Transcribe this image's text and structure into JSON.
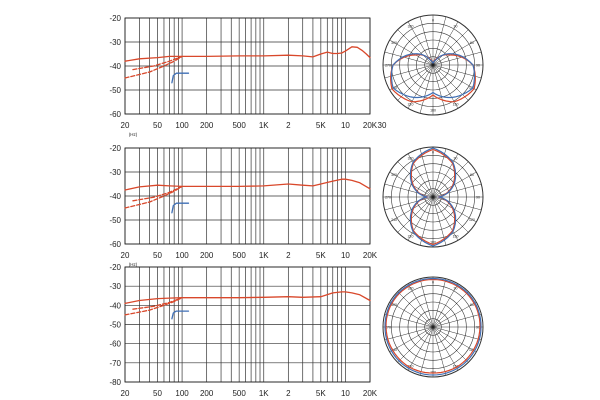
{
  "chart_data": [
    {
      "type": "line",
      "title": "",
      "x_scale": "log",
      "xlim": [
        20,
        20000
      ],
      "ylim": [
        -60,
        -20
      ],
      "y_ticks": [
        "-20",
        "-30",
        "-40",
        "-50",
        "-60"
      ],
      "x_ticks": [
        "20",
        "50",
        "100",
        "200",
        "500",
        "1K",
        "2",
        "5K",
        "10",
        "20K",
        "30"
      ],
      "x_unit": "(Hz)",
      "grid": true,
      "series": [
        {
          "color": "#d9482b",
          "style": "solid",
          "x": [
            20,
            30,
            50,
            70,
            100,
            200,
            500,
            1000,
            2000,
            3000,
            4000,
            5000,
            6000,
            7000,
            8000,
            9000,
            10000,
            12000,
            14000,
            16000,
            18000,
            20000
          ],
          "y": [
            -38,
            -37,
            -36.5,
            -36,
            -36,
            -36,
            -35.8,
            -35.8,
            -35.5,
            -35.8,
            -36.2,
            -35,
            -34.2,
            -34.8,
            -34.8,
            -34.6,
            -33.8,
            -32,
            -32.2,
            -33.5,
            -35,
            -36.5
          ]
        },
        {
          "color": "#d9482b",
          "style": "dashed",
          "x": [
            20,
            40,
            60,
            80,
            100
          ],
          "y": [
            -45,
            -42.5,
            -40,
            -38,
            -36
          ]
        },
        {
          "color": "#d9482b",
          "style": "dashed",
          "x": [
            25,
            45,
            70,
            100
          ],
          "y": [
            -41.5,
            -40,
            -38,
            -36
          ]
        },
        {
          "color": "#3f6fb5",
          "style": "solid",
          "x": [
            75,
            78,
            85,
            100,
            120
          ],
          "y": [
            -47,
            -44,
            -43,
            -43,
            -43
          ]
        }
      ]
    },
    {
      "type": "polar",
      "angle_labels": [
        "0",
        "30",
        "60",
        "90",
        "120",
        "150",
        "180",
        "210",
        "240",
        "270",
        "300",
        "330"
      ],
      "series": [
        {
          "color": "#d9482b",
          "radius_profile": [
            0.02,
            0.15,
            0.4,
            0.8,
            0.95,
            0.85,
            0.6,
            0.85,
            0.95,
            0.8,
            0.4,
            0.15
          ]
        },
        {
          "color": "#3f6fb5",
          "radius_profile": [
            0.02,
            0.12,
            0.45,
            0.8,
            0.92,
            0.75,
            0.55,
            0.75,
            0.92,
            0.8,
            0.45,
            0.12
          ]
        }
      ]
    },
    {
      "type": "line",
      "title": "",
      "x_scale": "log",
      "xlim": [
        20,
        20000
      ],
      "ylim": [
        -60,
        -20
      ],
      "y_ticks": [
        "-20",
        "-30",
        "-40",
        "-50",
        "-60"
      ],
      "x_ticks": [
        "20",
        "50",
        "100",
        "200",
        "500",
        "1K",
        "2",
        "5K",
        "10",
        "20K"
      ],
      "x_unit": "(Hz)",
      "grid": true,
      "series": [
        {
          "color": "#d9482b",
          "style": "solid",
          "x": [
            20,
            30,
            50,
            70,
            100,
            200,
            500,
            1000,
            2000,
            3000,
            4000,
            5000,
            7000,
            9000,
            10000,
            12000,
            15000,
            20000
          ],
          "y": [
            -37.5,
            -36.2,
            -35.5,
            -35.8,
            -36,
            -36,
            -36,
            -35.8,
            -35,
            -35.5,
            -35.8,
            -35,
            -33.8,
            -33,
            -33,
            -33.5,
            -34.5,
            -37
          ]
        },
        {
          "color": "#d9482b",
          "style": "dashed",
          "x": [
            20,
            40,
            60,
            80,
            100
          ],
          "y": [
            -45,
            -42.5,
            -40,
            -38,
            -36
          ]
        },
        {
          "color": "#d9482b",
          "style": "dashed",
          "x": [
            25,
            45,
            70,
            100
          ],
          "y": [
            -42,
            -40.5,
            -38.5,
            -36
          ]
        },
        {
          "color": "#3f6fb5",
          "style": "solid",
          "x": [
            75,
            78,
            85,
            100,
            120
          ],
          "y": [
            -47,
            -44,
            -43,
            -43,
            -43
          ]
        }
      ]
    },
    {
      "type": "polar",
      "angle_labels": [
        "0",
        "30",
        "60",
        "90",
        "120",
        "150",
        "180",
        "210",
        "240",
        "270",
        "300",
        "330"
      ],
      "series": [
        {
          "color": "#d9482b",
          "radius_profile": [
            0.95,
            0.78,
            0.45,
            0.1,
            0.45,
            0.78,
            0.95,
            0.78,
            0.45,
            0.1,
            0.45,
            0.78
          ]
        },
        {
          "color": "#3f6fb5",
          "radius_profile": [
            0.98,
            0.8,
            0.48,
            0.12,
            0.48,
            0.8,
            0.98,
            0.8,
            0.48,
            0.12,
            0.48,
            0.8
          ]
        }
      ]
    },
    {
      "type": "line",
      "title": "",
      "x_scale": "log",
      "xlim": [
        20,
        20000
      ],
      "ylim": [
        -80,
        -20
      ],
      "y_ticks": [
        "-20",
        "-30",
        "-40",
        "-50",
        "-60",
        "-70",
        "-80"
      ],
      "x_ticks": [
        "20",
        "50",
        "100",
        "200",
        "500",
        "1K",
        "2",
        "5K",
        "10",
        "20K"
      ],
      "x_unit": "(Hz)",
      "grid": true,
      "series": [
        {
          "color": "#d9482b",
          "style": "solid",
          "x": [
            20,
            30,
            50,
            70,
            100,
            200,
            500,
            1000,
            2000,
            3000,
            5000,
            7000,
            9000,
            10000,
            12000,
            15000,
            20000
          ],
          "y": [
            -39,
            -37.5,
            -36.5,
            -36.2,
            -36,
            -36,
            -36,
            -35.8,
            -35.5,
            -35.8,
            -35.5,
            -33.5,
            -33,
            -33,
            -33.5,
            -34.5,
            -37.5
          ]
        },
        {
          "color": "#d9482b",
          "style": "dashed",
          "x": [
            20,
            40,
            60,
            80,
            100
          ],
          "y": [
            -45,
            -42.5,
            -40,
            -38,
            -36
          ]
        },
        {
          "color": "#d9482b",
          "style": "dashed",
          "x": [
            25,
            45,
            70,
            100
          ],
          "y": [
            -42,
            -40.5,
            -38.5,
            -36
          ]
        },
        {
          "color": "#3f6fb5",
          "style": "solid",
          "x": [
            75,
            78,
            85,
            100,
            120
          ],
          "y": [
            -47,
            -44,
            -43,
            -43,
            -43
          ]
        }
      ]
    },
    {
      "type": "polar",
      "angle_labels": [
        "0",
        "30",
        "60",
        "90",
        "120",
        "150",
        "180",
        "210",
        "240",
        "270",
        "300",
        "330"
      ],
      "series": [
        {
          "color": "#d9482b",
          "radius_profile": [
            0.95,
            0.95,
            0.95,
            0.94,
            0.93,
            0.93,
            0.92,
            0.93,
            0.93,
            0.94,
            0.95,
            0.95
          ]
        },
        {
          "color": "#3f6fb5",
          "radius_profile": [
            0.97,
            0.97,
            0.97,
            0.96,
            0.96,
            0.96,
            0.96,
            0.96,
            0.96,
            0.96,
            0.97,
            0.97
          ]
        }
      ]
    }
  ]
}
